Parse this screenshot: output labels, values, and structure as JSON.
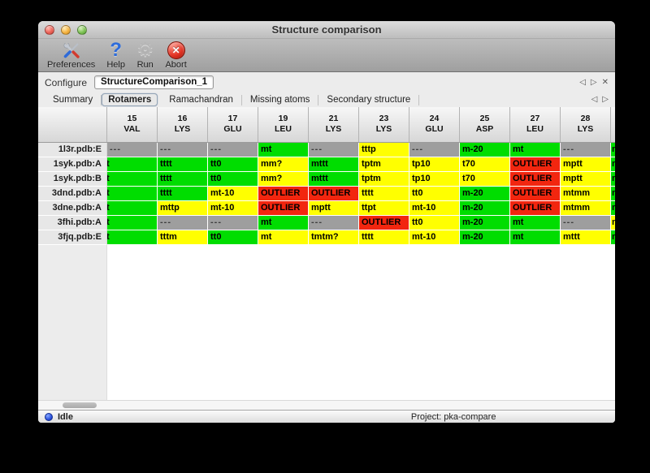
{
  "window": {
    "title": "Structure comparison"
  },
  "toolbar": {
    "items": [
      {
        "label": "Preferences",
        "icon": "tools-icon"
      },
      {
        "label": "Help",
        "icon": "question-mark-icon"
      },
      {
        "label": "Run",
        "icon": "gear-icon"
      },
      {
        "label": "Abort",
        "icon": "abort-icon"
      }
    ]
  },
  "configure": {
    "label": "Configure",
    "value": "StructureComparison_1"
  },
  "nav": {
    "back": "◁",
    "forward": "▷",
    "close": "✕"
  },
  "tabs": {
    "items": [
      "Summary",
      "Rotamers",
      "Ramachandran",
      "Missing atoms",
      "Secondary structure"
    ],
    "selected": "Rotamers"
  },
  "colors": {
    "green": "#00dd00",
    "yellow": "#ffff00",
    "red": "#f2260f",
    "gray": "#9e9e9e"
  },
  "table": {
    "columns": [
      {
        "num": "15",
        "res": "VAL"
      },
      {
        "num": "16",
        "res": "LYS"
      },
      {
        "num": "17",
        "res": "GLU"
      },
      {
        "num": "19",
        "res": "LEU"
      },
      {
        "num": "21",
        "res": "LYS"
      },
      {
        "num": "23",
        "res": "LYS"
      },
      {
        "num": "24",
        "res": "GLU"
      },
      {
        "num": "25",
        "res": "ASP"
      },
      {
        "num": "27",
        "res": "LEU"
      },
      {
        "num": "28",
        "res": "LYS"
      }
    ],
    "rows": [
      {
        "label": "1l3r.pdb:E",
        "cells": [
          [
            "---",
            "gray"
          ],
          [
            "---",
            "gray"
          ],
          [
            "---",
            "gray"
          ],
          [
            "mt",
            "green"
          ],
          [
            "---",
            "gray"
          ],
          [
            "tttp",
            "yellow"
          ],
          [
            "---",
            "gray"
          ],
          [
            "m-20",
            "green"
          ],
          [
            "mt",
            "green"
          ],
          [
            "---",
            "gray"
          ]
        ],
        "partial": [
          "m",
          "green"
        ]
      },
      {
        "label": "1syk.pdb:A",
        "cells": [
          [
            "t",
            "green",
            "clip"
          ],
          [
            "tttt",
            "green"
          ],
          [
            "tt0",
            "green"
          ],
          [
            "mm?",
            "yellow"
          ],
          [
            "mttt",
            "green"
          ],
          [
            "tptm",
            "yellow"
          ],
          [
            "tp10",
            "yellow"
          ],
          [
            "t70",
            "yellow"
          ],
          [
            "OUTLIER",
            "red"
          ],
          [
            "mptt",
            "yellow"
          ]
        ],
        "partial": [
          "m",
          "green"
        ]
      },
      {
        "label": "1syk.pdb:B",
        "cells": [
          [
            "t",
            "green",
            "clip"
          ],
          [
            "tttt",
            "green"
          ],
          [
            "tt0",
            "green"
          ],
          [
            "mm?",
            "yellow"
          ],
          [
            "mttt",
            "green"
          ],
          [
            "tptm",
            "yellow"
          ],
          [
            "tp10",
            "yellow"
          ],
          [
            "t70",
            "yellow"
          ],
          [
            "OUTLIER",
            "red"
          ],
          [
            "mptt",
            "yellow"
          ]
        ],
        "partial": [
          "m",
          "green"
        ]
      },
      {
        "label": "3dnd.pdb:A",
        "cells": [
          [
            "t",
            "green",
            "clip"
          ],
          [
            "tttt",
            "green"
          ],
          [
            "mt-10",
            "yellow"
          ],
          [
            "OUTLIER",
            "red"
          ],
          [
            "OUTLIER",
            "red"
          ],
          [
            "tttt",
            "yellow"
          ],
          [
            "tt0",
            "yellow"
          ],
          [
            "m-20",
            "green"
          ],
          [
            "OUTLIER",
            "red"
          ],
          [
            "mtmm",
            "yellow"
          ]
        ],
        "partial": [
          "m",
          "green"
        ]
      },
      {
        "label": "3dne.pdb:A",
        "cells": [
          [
            "t",
            "green",
            "clip"
          ],
          [
            "mttp",
            "yellow"
          ],
          [
            "mt-10",
            "yellow"
          ],
          [
            "OUTLIER",
            "red"
          ],
          [
            "mptt",
            "yellow"
          ],
          [
            "ttpt",
            "yellow"
          ],
          [
            "mt-10",
            "yellow"
          ],
          [
            "m-20",
            "green"
          ],
          [
            "OUTLIER",
            "red"
          ],
          [
            "mtmm",
            "yellow"
          ]
        ],
        "partial": [
          "m",
          "green"
        ]
      },
      {
        "label": "3fhi.pdb:A",
        "cells": [
          [
            "t",
            "green",
            "clip"
          ],
          [
            "---",
            "gray"
          ],
          [
            "---",
            "gray"
          ],
          [
            "mt",
            "green"
          ],
          [
            "---",
            "gray"
          ],
          [
            "OUTLIER",
            "red"
          ],
          [
            "tt0",
            "yellow"
          ],
          [
            "m-20",
            "green"
          ],
          [
            "mt",
            "green"
          ],
          [
            "---",
            "gray"
          ]
        ],
        "partial": [
          "m",
          "yellow"
        ]
      },
      {
        "label": "3fjq.pdb:E",
        "cells": [
          [
            "t",
            "green",
            "clip"
          ],
          [
            "tttm",
            "yellow"
          ],
          [
            "tt0",
            "green"
          ],
          [
            "mt",
            "yellow"
          ],
          [
            "tmtm?",
            "yellow"
          ],
          [
            "tttt",
            "yellow"
          ],
          [
            "mt-10",
            "yellow"
          ],
          [
            "m-20",
            "green"
          ],
          [
            "mt",
            "green"
          ],
          [
            "mttt",
            "yellow"
          ]
        ],
        "partial": [
          "m",
          "green"
        ]
      }
    ]
  },
  "statusbar": {
    "status": "Idle",
    "project": "Project: pka-compare"
  }
}
